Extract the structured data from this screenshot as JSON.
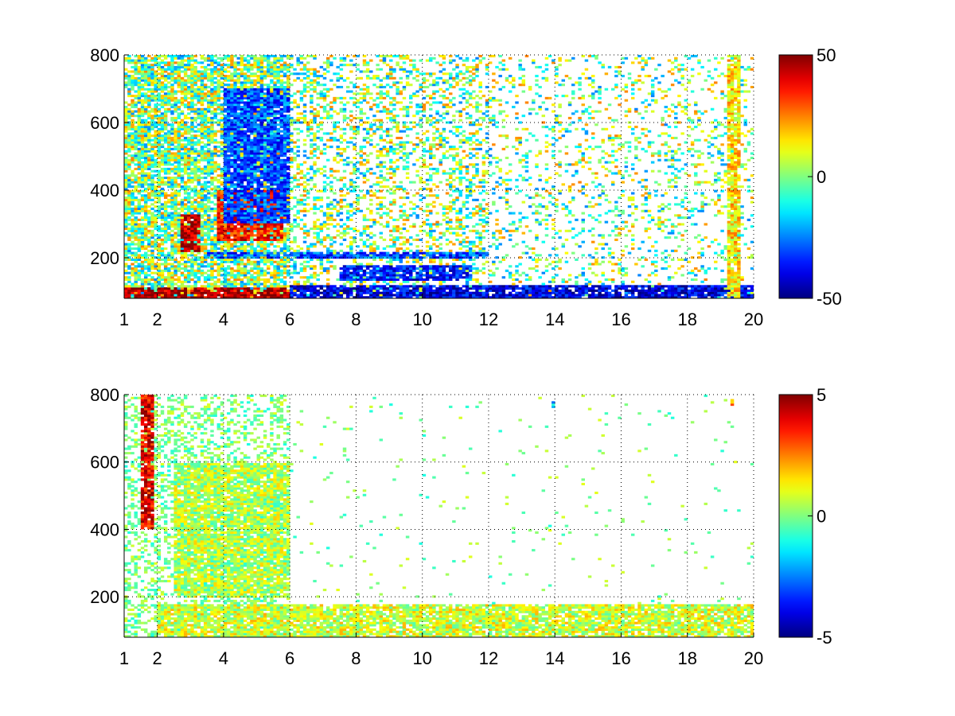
{
  "colormap": "jet",
  "chart_data": [
    {
      "type": "heatmap",
      "title": "",
      "xlabel": "",
      "ylabel": "",
      "xlim": [
        1,
        20
      ],
      "ylim": [
        80,
        800
      ],
      "xticks": [
        1,
        2,
        4,
        6,
        8,
        10,
        12,
        14,
        16,
        18,
        20
      ],
      "yticks": [
        200,
        400,
        600,
        800
      ],
      "grid": true,
      "grid_style": "dotted",
      "colorbar": {
        "min": -50,
        "max": 50,
        "ticks": [
          -50,
          0,
          50
        ]
      },
      "nan_color": "#ffffff",
      "features": [
        {
          "x": [
            2.7,
            3.3
          ],
          "y": [
            220,
            330
          ],
          "value": 45
        },
        {
          "x": [
            3.8,
            5.8
          ],
          "y": [
            250,
            400
          ],
          "value": 35
        },
        {
          "x": [
            4.0,
            6.0
          ],
          "y": [
            300,
            700
          ],
          "value": -30
        },
        {
          "x": [
            1.0,
            6.0
          ],
          "y": [
            80,
            110
          ],
          "value": 45
        },
        {
          "x": [
            6.0,
            20.0
          ],
          "y": [
            80,
            120
          ],
          "value": -40
        },
        {
          "x": [
            3.5,
            12.0
          ],
          "y": [
            200,
            220
          ],
          "value": -30
        },
        {
          "x": [
            7.5,
            11.5
          ],
          "y": [
            130,
            180
          ],
          "value": -35
        },
        {
          "x": [
            19.2,
            19.6
          ],
          "y": [
            80,
            800
          ],
          "value": 15
        }
      ]
    },
    {
      "type": "heatmap",
      "title": "",
      "xlabel": "",
      "ylabel": "",
      "xlim": [
        1,
        20
      ],
      "ylim": [
        80,
        800
      ],
      "xticks": [
        1,
        2,
        4,
        6,
        8,
        10,
        12,
        14,
        16,
        18,
        20
      ],
      "yticks": [
        200,
        400,
        600,
        800
      ],
      "grid": true,
      "grid_style": "dotted",
      "colorbar": {
        "min": -5,
        "max": 5,
        "ticks": [
          -5,
          0,
          5
        ]
      },
      "nan_color": "#ffffff",
      "features": [
        {
          "x": [
            1.5,
            1.9
          ],
          "y": [
            400,
            800
          ],
          "value": 4
        },
        {
          "x": [
            2.5,
            6.0
          ],
          "y": [
            200,
            600
          ],
          "value": 0.5
        },
        {
          "x": [
            2.0,
            20.0
          ],
          "y": [
            80,
            180
          ],
          "value": 0.8
        },
        {
          "x": [
            13.9,
            14.0
          ],
          "y": [
            760,
            780
          ],
          "value": -2
        },
        {
          "x": [
            19.3,
            19.4
          ],
          "y": [
            770,
            790
          ],
          "value": 2
        }
      ]
    }
  ]
}
